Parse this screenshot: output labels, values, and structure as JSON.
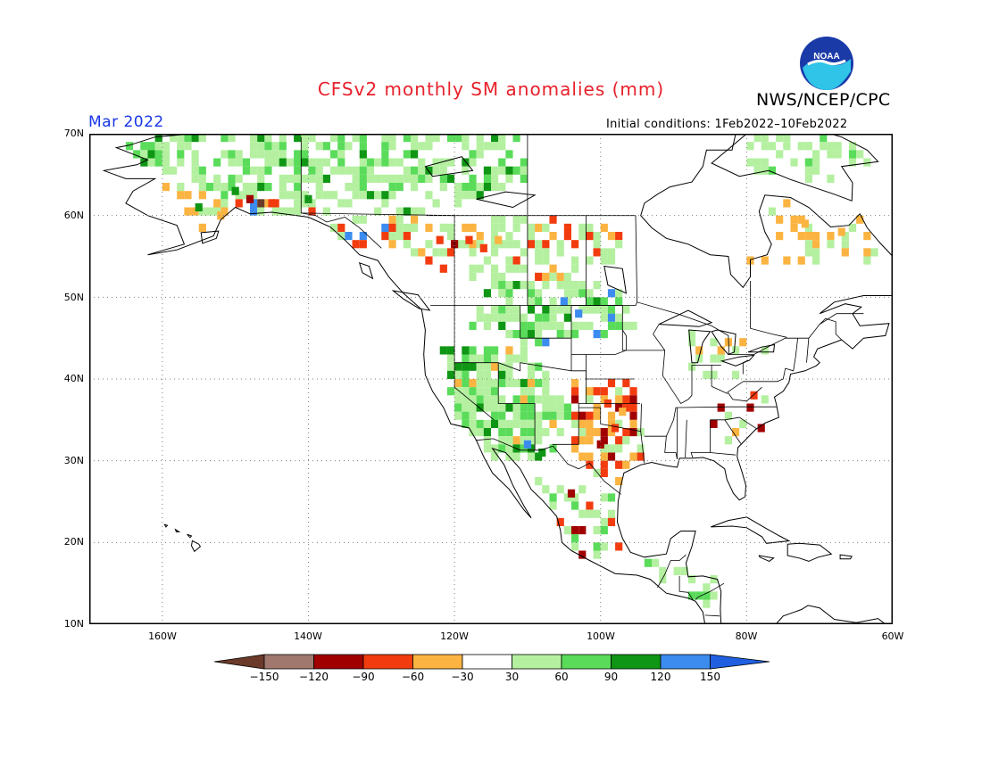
{
  "header": {
    "title": "CFSv2 monthly SM anomalies (mm)",
    "agency": "NWS/NCEP/CPC",
    "valid_month": "Mar 2022",
    "initial_conditions": "Initial conditions: 1Feb2022–10Feb2022",
    "logo_text": "NOAA"
  },
  "map": {
    "lon_range": [
      -170,
      -60
    ],
    "lat_range": [
      10,
      70
    ],
    "lat_ticks": [
      "70N",
      "60N",
      "50N",
      "40N",
      "30N",
      "20N",
      "10N"
    ],
    "lon_ticks": [
      "160W",
      "140W",
      "120W",
      "100W",
      "80W",
      "60W"
    ],
    "ocean_color": "#ffffff",
    "coast_color": "#000000",
    "grid_style": "dotted"
  },
  "colorbar": {
    "labels": [
      "−150",
      "−120",
      "−90",
      "−60",
      "−30",
      "30",
      "60",
      "90",
      "120",
      "150"
    ],
    "colors": [
      "#6b3a2a",
      "#a0786e",
      "#a00000",
      "#f23c0f",
      "#fbb441",
      "#ffffff",
      "#b4f0a0",
      "#5adc5a",
      "#0f9614",
      "#3c8cf0",
      "#2060e0"
    ]
  },
  "anomaly_cells": [
    {
      "lon": -150,
      "lat": 63,
      "cls": "wet-strong"
    },
    {
      "lon": -148,
      "lat": 62,
      "cls": "dry-strong"
    },
    {
      "lon": -145,
      "lat": 61.5,
      "cls": "dry-mod"
    },
    {
      "lon": -140,
      "lat": 62,
      "cls": "wet-strong"
    },
    {
      "lon": -155,
      "lat": 61,
      "cls": "wet-strong"
    },
    {
      "lon": -152,
      "lat": 60,
      "cls": "dry-light"
    },
    {
      "lon": -122,
      "lat": 57,
      "cls": "dry-mod"
    },
    {
      "lon": -120,
      "lat": 56.5,
      "cls": "dry-strong"
    },
    {
      "lon": -118,
      "lat": 57,
      "cls": "dry-mod"
    },
    {
      "lon": -116,
      "lat": 56,
      "cls": "dry-mod"
    },
    {
      "lon": -114,
      "lat": 57,
      "cls": "dry-light"
    },
    {
      "lon": -105,
      "lat": 49.5,
      "cls": "vwet"
    },
    {
      "lon": -103,
      "lat": 48,
      "cls": "vwet"
    },
    {
      "lon": -99,
      "lat": 37,
      "cls": "dry-mod"
    },
    {
      "lon": -98,
      "lat": 34,
      "cls": "dry-mod"
    },
    {
      "lon": -100,
      "lat": 32,
      "cls": "dry-strong"
    },
    {
      "lon": -97,
      "lat": 36,
      "cls": "dry-light"
    },
    {
      "lon": -110,
      "lat": 32,
      "cls": "vwet"
    },
    {
      "lon": -108,
      "lat": 31,
      "cls": "wet-strong"
    },
    {
      "lon": -104,
      "lat": 26,
      "cls": "dry-strong"
    },
    {
      "lon": -79,
      "lat": 38,
      "cls": "dry-mod"
    },
    {
      "lon": -78,
      "lat": 34,
      "cls": "dry-strong"
    },
    {
      "lon": -72,
      "lat": 59,
      "cls": "dry-light"
    },
    {
      "lon": -67,
      "lat": 58,
      "cls": "dry-light"
    }
  ]
}
